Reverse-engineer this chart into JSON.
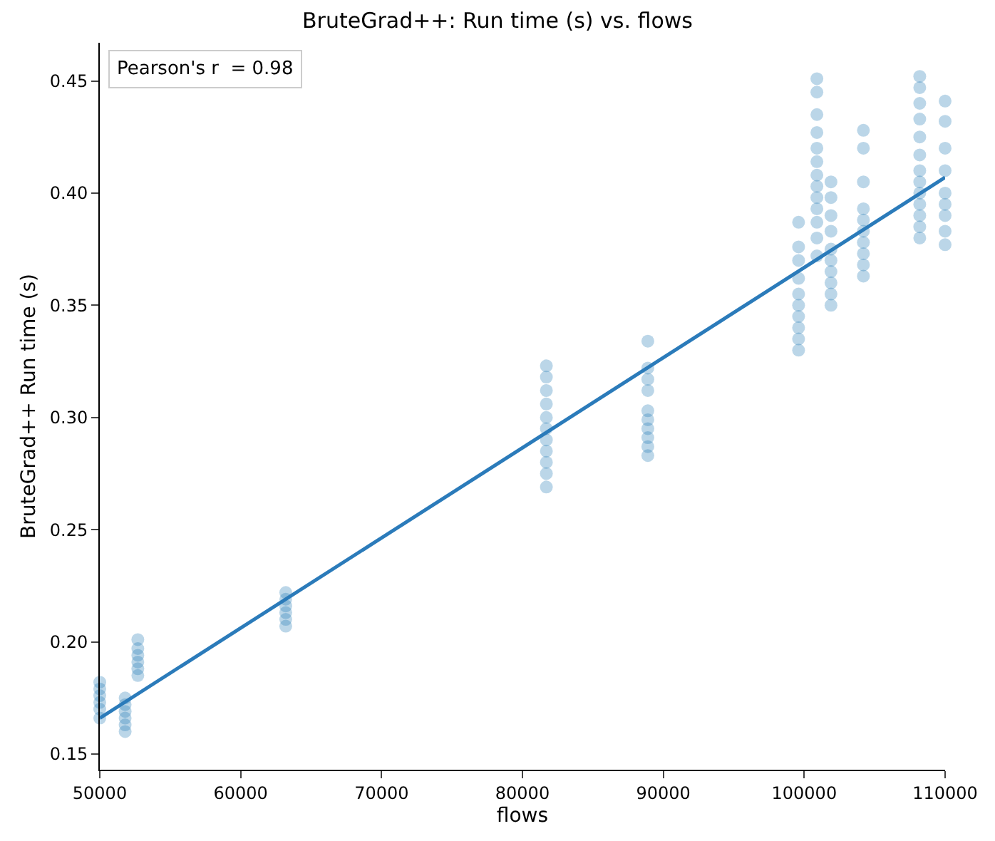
{
  "chart_data": {
    "type": "scatter",
    "title": "BruteGrad++: Run time (s) vs. flows",
    "xlabel": "flows",
    "ylabel": "BruteGrad++ Run time (s)",
    "xlim": [
      50000,
      110000
    ],
    "xticks": [
      50000,
      60000,
      70000,
      80000,
      90000,
      100000,
      110000
    ],
    "ylim": [
      0.143,
      0.467
    ],
    "yticks": [
      0.15,
      {
        "value": 0.2,
        "label": "0.20"
      },
      0.25,
      {
        "value": 0.3,
        "label": "0.30"
      },
      0.35,
      {
        "value": 0.4,
        "label": "0.40"
      },
      0.45
    ],
    "annotations": [
      "Pearson's r  = 0.98"
    ],
    "series": [
      {
        "marker": "circle",
        "color": "#1f77b4",
        "x": [
          50000,
          50000,
          50000,
          50000,
          50000,
          50000,
          51800,
          51800,
          51800,
          51800,
          51800,
          51800,
          52700,
          52700,
          52700,
          52700,
          52700,
          52700,
          63200,
          63200,
          63200,
          63200,
          63200,
          63200,
          81700,
          81700,
          81700,
          81700,
          81700,
          81700,
          81700,
          81700,
          81700,
          81700,
          81700,
          88900,
          88900,
          88900,
          88900,
          88900,
          88900,
          88900,
          88900,
          88900,
          88900,
          99600,
          99600,
          99600,
          99600,
          99600,
          99600,
          99600,
          99600,
          99600,
          99600,
          100900,
          100900,
          100900,
          100900,
          100900,
          100900,
          100900,
          100900,
          100900,
          100900,
          100900,
          100900,
          100900,
          101900,
          101900,
          101900,
          101900,
          101900,
          101900,
          101900,
          101900,
          101900,
          101900,
          104200,
          104200,
          104200,
          104200,
          104200,
          104200,
          104200,
          104200,
          104200,
          104200,
          108200,
          108200,
          108200,
          108200,
          108200,
          108200,
          108200,
          108200,
          108200,
          108200,
          108200,
          108200,
          108200,
          110000,
          110000,
          110000,
          110000,
          110000,
          110000,
          110000,
          110000,
          110000
        ],
        "values": [
          0.166,
          0.17,
          0.173,
          0.176,
          0.179,
          0.182,
          0.16,
          0.163,
          0.166,
          0.169,
          0.172,
          0.175,
          0.185,
          0.188,
          0.191,
          0.194,
          0.197,
          0.201,
          0.207,
          0.21,
          0.213,
          0.216,
          0.219,
          0.222,
          0.269,
          0.275,
          0.28,
          0.285,
          0.29,
          0.295,
          0.3,
          0.306,
          0.312,
          0.318,
          0.323,
          0.283,
          0.287,
          0.291,
          0.295,
          0.299,
          0.303,
          0.312,
          0.317,
          0.322,
          0.334,
          0.33,
          0.335,
          0.34,
          0.345,
          0.35,
          0.355,
          0.362,
          0.37,
          0.376,
          0.387,
          0.372,
          0.38,
          0.387,
          0.393,
          0.398,
          0.403,
          0.408,
          0.414,
          0.42,
          0.427,
          0.435,
          0.445,
          0.451,
          0.35,
          0.355,
          0.36,
          0.365,
          0.37,
          0.375,
          0.383,
          0.39,
          0.398,
          0.405,
          0.363,
          0.368,
          0.373,
          0.378,
          0.383,
          0.388,
          0.393,
          0.405,
          0.42,
          0.428,
          0.38,
          0.385,
          0.39,
          0.395,
          0.4,
          0.405,
          0.41,
          0.417,
          0.425,
          0.433,
          0.44,
          0.447,
          0.452,
          0.377,
          0.383,
          0.39,
          0.395,
          0.4,
          0.41,
          0.42,
          0.432,
          0.441
        ]
      },
      {
        "type": "line",
        "marker": "none",
        "color": "#2b7bba",
        "line_style": "solid",
        "x": [
          50000,
          110000
        ],
        "values": [
          0.166,
          0.407
        ]
      }
    ]
  }
}
